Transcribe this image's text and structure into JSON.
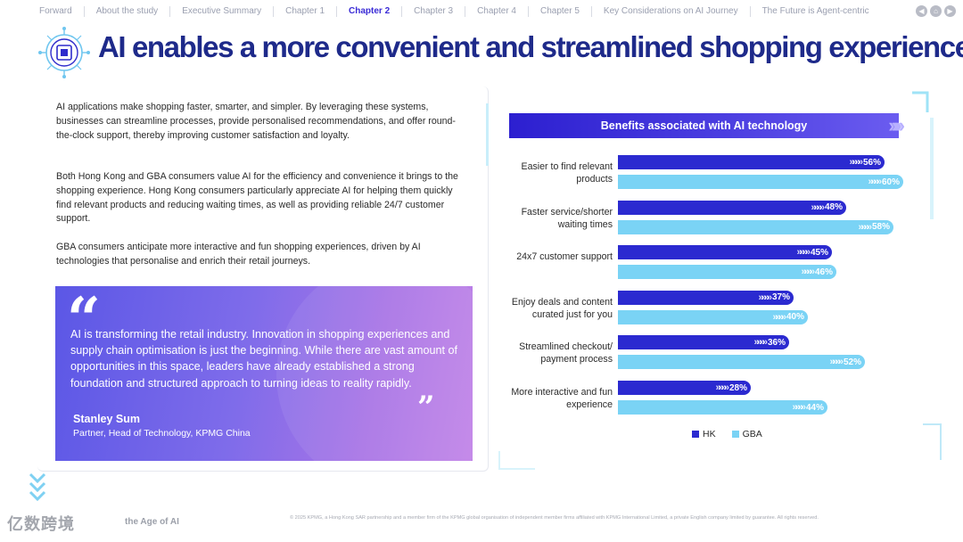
{
  "nav": {
    "items": [
      "Forward",
      "About the study",
      "Executive Summary",
      "Chapter 1",
      "Chapter 2",
      "Chapter 3",
      "Chapter 4",
      "Chapter 5",
      "Key Considerations on AI Journey",
      "The Future is Agent-centric"
    ],
    "active_index": 4
  },
  "title": "AI enables a more convenient and streamlined shopping experience",
  "paragraphs": [
    "AI applications make shopping faster, smarter, and simpler. By leveraging these systems, businesses can streamline processes, provide personalised recommendations, and offer round-the-clock support, thereby improving customer satisfaction and loyalty.",
    "Both Hong Kong and GBA consumers value AI for the efficiency and convenience it brings to the shopping experience. Hong Kong consumers particularly appreciate AI for helping them quickly find relevant products and reducing waiting times, as well as providing reliable 24/7 customer support.",
    "GBA consumers anticipate more interactive and fun shopping experiences, driven by AI technologies that personalise and enrich their retail journeys."
  ],
  "quote": {
    "text": "AI is transforming the retail industry. Innovation in shopping experiences and supply chain optimisation is just the beginning. While there are vast amount of opportunities in this space, leaders have already established a strong foundation and structured approach to turning ideas to reality rapidly.",
    "name": "Stanley Sum",
    "role": "Partner, Head of Technology, KPMG China"
  },
  "chart_data": {
    "type": "bar",
    "orientation": "horizontal",
    "title": "Benefits associated with AI technology",
    "categories": [
      "Easier to find relevant products",
      "Faster service/shorter waiting times",
      "24x7 customer support",
      "Enjoy deals and content curated just for you",
      "Streamlined checkout/ payment process",
      "More interactive and fun experience"
    ],
    "series": [
      {
        "name": "HK",
        "color": "#2b2ad0",
        "values": [
          56,
          48,
          45,
          37,
          36,
          28
        ]
      },
      {
        "name": "GBA",
        "color": "#7ad3f5",
        "values": [
          60,
          58,
          46,
          40,
          52,
          44
        ]
      }
    ],
    "value_suffix": "%",
    "xlim": [
      0,
      100
    ],
    "legend_position": "bottom"
  },
  "footer": {
    "watermark": "亿数跨境",
    "left_text": "the Age of AI",
    "copyright": "© 2025 KPMG, a Hong Kong SAR partnership and a member firm of the KPMG global organisation of independent member firms affiliated with KPMG International Limited, a private English company limited by guarantee. All rights reserved."
  }
}
